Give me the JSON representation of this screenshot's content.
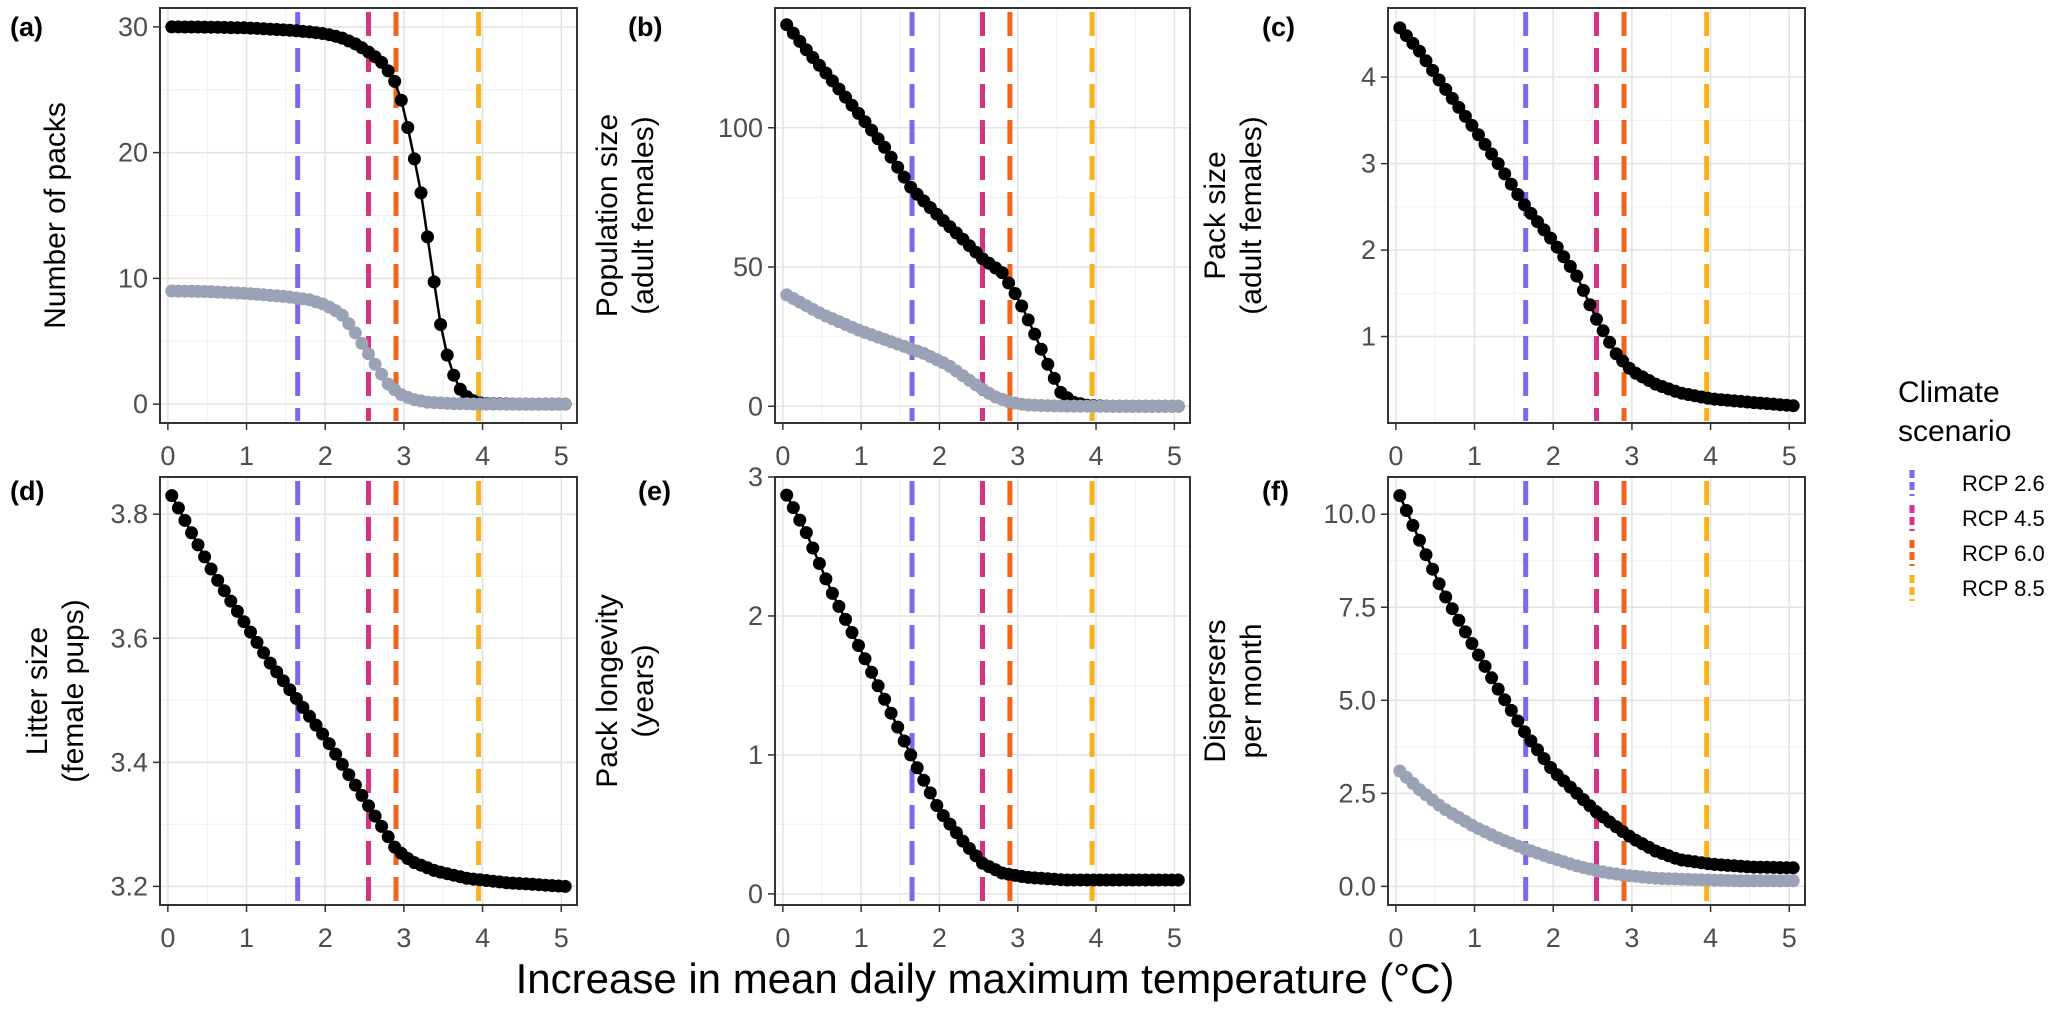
{
  "figure": {
    "x_label": "Increase in mean daily maximum temperature (°C)",
    "legend": {
      "title_line1": "Climate",
      "title_line2": "scenario",
      "items": [
        {
          "label": "RCP 2.6",
          "color": "#7b68ee"
        },
        {
          "label": "RCP 4.5",
          "color": "#d63384"
        },
        {
          "label": "RCP 6.0",
          "color": "#f0651b"
        },
        {
          "label": "RCP 8.5",
          "color": "#f7b21b"
        }
      ]
    }
  },
  "chart_data": [
    {
      "type": "scatter",
      "panel": "(a)",
      "ylabel_lines": [
        "Number of packs"
      ],
      "x_ticks": [
        "0",
        "1",
        "2",
        "3",
        "4",
        "5"
      ],
      "y_ticks": [
        {
          "v": 0,
          "label": "0"
        },
        {
          "v": 10,
          "label": "10"
        },
        {
          "v": 20,
          "label": "20"
        },
        {
          "v": 30,
          "label": "30"
        }
      ],
      "xlim": [
        -0.1,
        5.2
      ],
      "ylim": [
        -1.5,
        31.5
      ],
      "scenario_lines": [
        1.65,
        2.55,
        2.9,
        3.95
      ],
      "series": [
        {
          "color": "#000000",
          "line": true,
          "points": [
            [
              0.05,
              30
            ],
            [
              0.5,
              29.98
            ],
            [
              1.0,
              29.92
            ],
            [
              1.5,
              29.75
            ],
            [
              1.8,
              29.6
            ],
            [
              2.0,
              29.45
            ],
            [
              2.2,
              29.15
            ],
            [
              2.4,
              28.6
            ],
            [
              2.6,
              27.8
            ],
            [
              2.75,
              27.0
            ],
            [
              2.9,
              25.5
            ],
            [
              3.0,
              23.5
            ],
            [
              3.1,
              20.5
            ],
            [
              3.2,
              17.5
            ],
            [
              3.3,
              13.3
            ],
            [
              3.4,
              9.0
            ],
            [
              3.5,
              5.0
            ],
            [
              3.6,
              2.8
            ],
            [
              3.7,
              1.3
            ],
            [
              3.8,
              0.6
            ],
            [
              3.9,
              0.2
            ],
            [
              4.0,
              0.05
            ],
            [
              4.5,
              0.0
            ],
            [
              5.05,
              0.0
            ]
          ]
        },
        {
          "color": "#9aa3b5",
          "line": false,
          "points": [
            [
              0.05,
              9.0
            ],
            [
              0.5,
              8.95
            ],
            [
              1.0,
              8.8
            ],
            [
              1.5,
              8.55
            ],
            [
              1.8,
              8.3
            ],
            [
              2.0,
              7.9
            ],
            [
              2.2,
              7.2
            ],
            [
              2.35,
              6.0
            ],
            [
              2.5,
              4.5
            ],
            [
              2.65,
              3.0
            ],
            [
              2.8,
              1.6
            ],
            [
              2.95,
              0.8
            ],
            [
              3.1,
              0.4
            ],
            [
              3.3,
              0.15
            ],
            [
              3.6,
              0.05
            ],
            [
              4.0,
              0.0
            ],
            [
              4.5,
              0.0
            ],
            [
              5.05,
              0.0
            ]
          ]
        }
      ]
    },
    {
      "type": "scatter",
      "panel": "(b)",
      "ylabel_lines": [
        "Population size",
        "(adult females)"
      ],
      "x_ticks": [
        "0",
        "1",
        "2",
        "3",
        "4",
        "5"
      ],
      "y_ticks": [
        {
          "v": 0,
          "label": "0"
        },
        {
          "v": 50,
          "label": "50"
        },
        {
          "v": 100,
          "label": "100"
        }
      ],
      "xlim": [
        -0.1,
        5.2
      ],
      "ylim": [
        -6,
        143
      ],
      "scenario_lines": [
        1.65,
        2.55,
        2.9,
        3.95
      ],
      "series": [
        {
          "color": "#000000",
          "line": true,
          "points": [
            [
              0.05,
              137
            ],
            [
              0.3,
              128
            ],
            [
              0.6,
              118
            ],
            [
              1.0,
              104
            ],
            [
              1.3,
              93
            ],
            [
              1.65,
              78
            ],
            [
              2.0,
              68
            ],
            [
              2.3,
              60
            ],
            [
              2.55,
              53
            ],
            [
              2.8,
              48
            ],
            [
              3.0,
              39
            ],
            [
              3.2,
              27
            ],
            [
              3.4,
              14
            ],
            [
              3.55,
              5
            ],
            [
              3.7,
              1.5
            ],
            [
              3.9,
              0.3
            ],
            [
              4.2,
              0.0
            ],
            [
              5.05,
              0.0
            ]
          ]
        },
        {
          "color": "#9aa3b5",
          "line": false,
          "points": [
            [
              0.05,
              40
            ],
            [
              0.5,
              33
            ],
            [
              1.0,
              27
            ],
            [
              1.5,
              22
            ],
            [
              1.8,
              19
            ],
            [
              2.1,
              15
            ],
            [
              2.3,
              11
            ],
            [
              2.5,
              7
            ],
            [
              2.7,
              3.5
            ],
            [
              2.9,
              1.5
            ],
            [
              3.1,
              0.5
            ],
            [
              3.5,
              0.1
            ],
            [
              4.0,
              0.0
            ],
            [
              5.05,
              0.0
            ]
          ]
        }
      ]
    },
    {
      "type": "scatter",
      "panel": "(c)",
      "ylabel_lines": [
        "Pack size",
        "(adult females)"
      ],
      "x_ticks": [
        "0",
        "1",
        "2",
        "3",
        "4",
        "5"
      ],
      "y_ticks": [
        {
          "v": 1,
          "label": "1"
        },
        {
          "v": 2,
          "label": "2"
        },
        {
          "v": 3,
          "label": "3"
        },
        {
          "v": 4,
          "label": "4"
        }
      ],
      "xlim": [
        -0.1,
        5.2
      ],
      "ylim": [
        0.0,
        4.8
      ],
      "scenario_lines": [
        1.65,
        2.55,
        2.9,
        3.95
      ],
      "series": [
        {
          "color": "#000000",
          "line": true,
          "points": [
            [
              0.05,
              4.57
            ],
            [
              0.3,
              4.3
            ],
            [
              0.6,
              3.9
            ],
            [
              1.0,
              3.4
            ],
            [
              1.3,
              3.0
            ],
            [
              1.65,
              2.5
            ],
            [
              2.0,
              2.1
            ],
            [
              2.3,
              1.7
            ],
            [
              2.55,
              1.2
            ],
            [
              2.8,
              0.8
            ],
            [
              3.0,
              0.6
            ],
            [
              3.3,
              0.45
            ],
            [
              3.6,
              0.35
            ],
            [
              4.0,
              0.28
            ],
            [
              4.5,
              0.24
            ],
            [
              5.05,
              0.2
            ]
          ]
        }
      ]
    },
    {
      "type": "scatter",
      "panel": "(d)",
      "ylabel_lines": [
        "Litter size",
        "(female pups)"
      ],
      "x_ticks": [
        "0",
        "1",
        "2",
        "3",
        "4",
        "5"
      ],
      "y_ticks": [
        {
          "v": 3.2,
          "label": "3.2"
        },
        {
          "v": 3.4,
          "label": "3.4"
        },
        {
          "v": 3.6,
          "label": "3.6"
        },
        {
          "v": 3.8,
          "label": "3.8"
        }
      ],
      "xlim": [
        -0.1,
        5.2
      ],
      "ylim": [
        3.17,
        3.86
      ],
      "scenario_lines": [
        1.65,
        2.55,
        2.9,
        3.95
      ],
      "series": [
        {
          "color": "#000000",
          "line": true,
          "points": [
            [
              0.05,
              3.83
            ],
            [
              0.3,
              3.77
            ],
            [
              0.6,
              3.7
            ],
            [
              1.0,
              3.62
            ],
            [
              1.3,
              3.56
            ],
            [
              1.65,
              3.5
            ],
            [
              2.0,
              3.44
            ],
            [
              2.3,
              3.38
            ],
            [
              2.55,
              3.33
            ],
            [
              2.75,
              3.29
            ],
            [
              2.9,
              3.26
            ],
            [
              3.1,
              3.24
            ],
            [
              3.4,
              3.225
            ],
            [
              3.8,
              3.213
            ],
            [
              4.3,
              3.206
            ],
            [
              5.05,
              3.2
            ]
          ]
        }
      ]
    },
    {
      "type": "scatter",
      "panel": "(e)",
      "ylabel_lines": [
        "Pack longevity",
        "(years)"
      ],
      "x_ticks": [
        "0",
        "1",
        "2",
        "3",
        "4",
        "5"
      ],
      "y_ticks": [
        {
          "v": 0,
          "label": "0"
        },
        {
          "v": 1,
          "label": "1"
        },
        {
          "v": 2,
          "label": "2"
        },
        {
          "v": 3,
          "label": "3"
        }
      ],
      "xlim": [
        -0.1,
        5.2
      ],
      "ylim": [
        -0.08,
        3.0
      ],
      "scenario_lines": [
        1.65,
        2.55,
        2.9,
        3.95
      ],
      "series": [
        {
          "color": "#000000",
          "line": true,
          "points": [
            [
              0.05,
              2.87
            ],
            [
              0.3,
              2.6
            ],
            [
              0.6,
              2.2
            ],
            [
              1.0,
              1.75
            ],
            [
              1.3,
              1.4
            ],
            [
              1.65,
              0.98
            ],
            [
              2.0,
              0.6
            ],
            [
              2.3,
              0.38
            ],
            [
              2.55,
              0.22
            ],
            [
              2.8,
              0.15
            ],
            [
              3.1,
              0.12
            ],
            [
              3.6,
              0.1
            ],
            [
              4.2,
              0.1
            ],
            [
              5.05,
              0.1
            ]
          ]
        }
      ]
    },
    {
      "type": "scatter",
      "panel": "(f)",
      "ylabel_lines": [
        "Dispersers",
        "per month"
      ],
      "x_ticks": [
        "0",
        "1",
        "2",
        "3",
        "4",
        "5"
      ],
      "y_ticks": [
        {
          "v": 0,
          "label": "0.0"
        },
        {
          "v": 2.5,
          "label": "2.5"
        },
        {
          "v": 5,
          "label": "5.0"
        },
        {
          "v": 7.5,
          "label": "7.5"
        },
        {
          "v": 10,
          "label": "10.0"
        }
      ],
      "xlim": [
        -0.1,
        5.2
      ],
      "ylim": [
        -0.5,
        11.0
      ],
      "scenario_lines": [
        1.65,
        2.55,
        2.9,
        3.95
      ],
      "series": [
        {
          "color": "#000000",
          "line": true,
          "points": [
            [
              0.05,
              10.5
            ],
            [
              0.3,
              9.3
            ],
            [
              0.6,
              7.9
            ],
            [
              1.0,
              6.4
            ],
            [
              1.3,
              5.3
            ],
            [
              1.65,
              4.1
            ],
            [
              2.0,
              3.1
            ],
            [
              2.3,
              2.5
            ],
            [
              2.55,
              2.0
            ],
            [
              2.8,
              1.6
            ],
            [
              3.0,
              1.3
            ],
            [
              3.3,
              0.95
            ],
            [
              3.6,
              0.72
            ],
            [
              4.0,
              0.6
            ],
            [
              4.5,
              0.52
            ],
            [
              5.05,
              0.5
            ]
          ]
        },
        {
          "color": "#9aa3b5",
          "line": false,
          "points": [
            [
              0.05,
              3.1
            ],
            [
              0.3,
              2.6
            ],
            [
              0.6,
              2.1
            ],
            [
              1.0,
              1.6
            ],
            [
              1.3,
              1.3
            ],
            [
              1.65,
              1.0
            ],
            [
              2.0,
              0.75
            ],
            [
              2.3,
              0.55
            ],
            [
              2.6,
              0.4
            ],
            [
              2.9,
              0.3
            ],
            [
              3.3,
              0.22
            ],
            [
              3.8,
              0.18
            ],
            [
              4.4,
              0.15
            ],
            [
              5.05,
              0.15
            ]
          ]
        }
      ]
    }
  ]
}
